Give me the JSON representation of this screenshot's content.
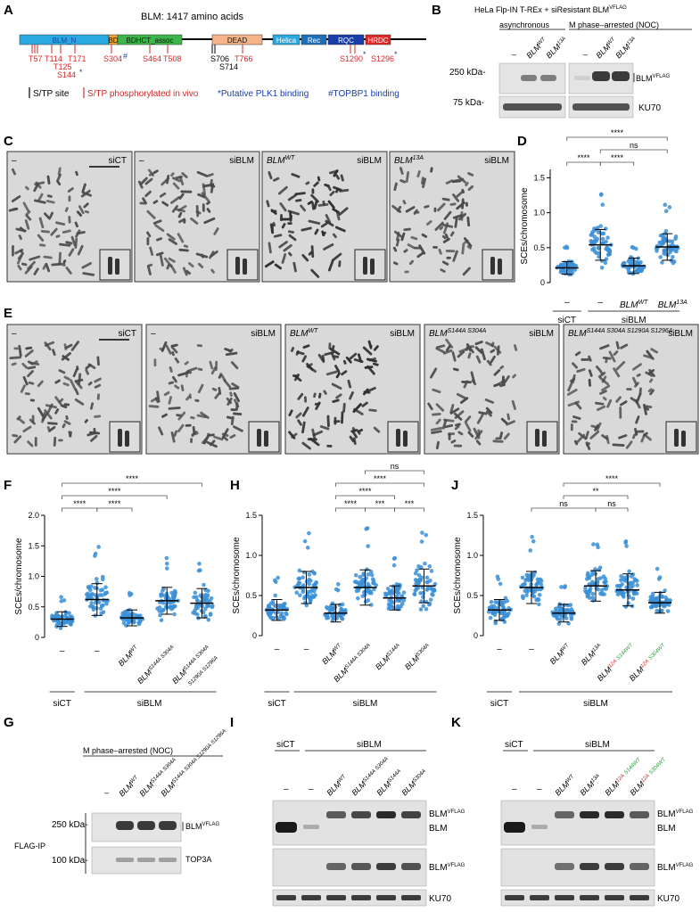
{
  "panels": {
    "A": "A",
    "B": "B",
    "C": "C",
    "D": "D",
    "E": "E",
    "F": "F",
    "G": "G",
    "H": "H",
    "I": "I",
    "J": "J",
    "K": "K"
  },
  "panelA": {
    "title": "BLM: 1417 amino acids",
    "domains": [
      {
        "label": "BLM_N",
        "color": "#29a9df",
        "text_color": "#1a3ea8"
      },
      {
        "label": "BD",
        "color": "#f2a53a",
        "text_color": "#111"
      },
      {
        "label": "BDHCT_assoc",
        "color": "#3cb54a",
        "text_color": "#111"
      },
      {
        "label": "DEAD",
        "color": "#f5b48a",
        "text_color": "#111"
      },
      {
        "label": "Helica",
        "color": "#29a9df",
        "text_color": "#fff"
      },
      {
        "label": "Rec",
        "color": "#1f6fb8",
        "text_color": "#fff"
      },
      {
        "label": "RQC",
        "color": "#1a3ea8",
        "text_color": "#fff"
      },
      {
        "label": "HRDC",
        "color": "#e02828",
        "text_color": "#fff"
      }
    ],
    "sites_row1": [
      "T57",
      "T114",
      "T171",
      "S304",
      "S464",
      "T508",
      "S706",
      "T766",
      "S1290",
      "S1296"
    ],
    "sites_row2": [
      "T125",
      "S714"
    ],
    "sites_row3": [
      "S144"
    ],
    "star": "*",
    "hash": "#",
    "legend": {
      "st": "S/TP site",
      "phospho": "S/TP phosphorylated in vivo",
      "plk1": "*Putative PLK1 binding",
      "topbp1": "#TOPBP1 binding"
    },
    "colors": {
      "red": "#d22a2a",
      "blue": "#1a3ea8"
    }
  },
  "panelB": {
    "header": "HeLa Flp-IN T-REx + siResistant BLM",
    "header_sup": "VFLAG",
    "async": "asynchronous",
    "mphase": "M phase–arrested (NOC)",
    "lanes": [
      "–",
      "BLM",
      "BLM"
    ],
    "lane_sups": [
      "",
      "WT",
      "13A"
    ],
    "kda_250": "250 kDa-",
    "kda_75": "75 kDa-",
    "band_blm": "BLM",
    "band_blm_sup": "VFLAG",
    "band_ku": "KU70"
  },
  "panelC": {
    "images": [
      {
        "left": "–",
        "right": "siCT"
      },
      {
        "left": "–",
        "right": "siBLM"
      },
      {
        "left": "BLM",
        "left_sup": "WT",
        "right": "siBLM"
      },
      {
        "left": "BLM",
        "left_sup": "13A",
        "right": "siBLM"
      }
    ]
  },
  "panelE": {
    "images": [
      {
        "left": "–",
        "right": "siCT"
      },
      {
        "left": "–",
        "right": "siBLM"
      },
      {
        "left": "BLM",
        "left_sup": "WT",
        "right": "siBLM"
      },
      {
        "left": "BLM",
        "left_sup": "S144A S304A",
        "right": "siBLM"
      },
      {
        "left": "BLM",
        "left_sup": "S144A S304A S1290A S1296A",
        "right": "siBLM"
      }
    ]
  },
  "ylabel": "SCEs/chromosome",
  "chart_data": [
    {
      "panel": "D",
      "type": "scatter",
      "ylabel": "SCEs/chromosome",
      "yticks": [
        0,
        0.5,
        1.0,
        1.5
      ],
      "categories": [
        "–",
        "–",
        "BLM WT",
        "BLM 13A"
      ],
      "x_groups": {
        "siCT": [
          0
        ],
        "siBLM": [
          1,
          2,
          3
        ]
      },
      "means": [
        0.21,
        0.54,
        0.24,
        0.51
      ],
      "sds": [
        0.09,
        0.22,
        0.11,
        0.19
      ],
      "sig": [
        {
          "a": 0,
          "b": 1,
          "label": "****"
        },
        {
          "a": 1,
          "b": 2,
          "label": "****"
        },
        {
          "a": 1,
          "b": 3,
          "label": "ns"
        },
        {
          "a": 0,
          "b": 3,
          "label": "****"
        }
      ]
    },
    {
      "panel": "F",
      "type": "scatter",
      "ylabel": "SCEs/chromosome",
      "yticks": [
        0,
        0.5,
        1.0,
        1.5,
        2.0
      ],
      "categories": [
        "–",
        "–",
        "BLM WT",
        "BLM S144A S304A",
        "BLM S144A S304A S1290A S1296A"
      ],
      "x_groups": {
        "siCT": [
          0
        ],
        "siBLM": [
          1,
          2,
          3,
          4
        ]
      },
      "means": [
        0.3,
        0.62,
        0.32,
        0.6,
        0.56
      ],
      "sds": [
        0.12,
        0.26,
        0.13,
        0.22,
        0.24
      ],
      "sig": [
        {
          "a": 0,
          "b": 1,
          "label": "****"
        },
        {
          "a": 1,
          "b": 2,
          "label": "****"
        },
        {
          "a": 0,
          "b": 3,
          "label": "****"
        },
        {
          "a": 0,
          "b": 4,
          "label": "****"
        }
      ]
    },
    {
      "panel": "H",
      "type": "scatter",
      "ylabel": "SCEs/chromosome",
      "yticks": [
        0,
        0.5,
        1.0,
        1.5
      ],
      "categories": [
        "–",
        "–",
        "BLM WT",
        "BLM S144A S304A",
        "BLM S144A",
        "BLM S304A"
      ],
      "x_groups": {
        "siCT": [
          0
        ],
        "siBLM": [
          1,
          2,
          3,
          4,
          5
        ]
      },
      "means": [
        0.32,
        0.6,
        0.28,
        0.6,
        0.47,
        0.62
      ],
      "sds": [
        0.13,
        0.2,
        0.11,
        0.22,
        0.15,
        0.21
      ],
      "sig": [
        {
          "a": 2,
          "b": 3,
          "label": "****"
        },
        {
          "a": 3,
          "b": 4,
          "label": "***"
        },
        {
          "a": 4,
          "b": 5,
          "label": "***"
        },
        {
          "a": 2,
          "b": 4,
          "label": "****"
        },
        {
          "a": 2,
          "b": 5,
          "label": "****"
        },
        {
          "a": 3,
          "b": 5,
          "label": "ns"
        }
      ]
    },
    {
      "panel": "J",
      "type": "scatter",
      "ylabel": "SCEs/chromosome",
      "yticks": [
        0,
        0.5,
        1.0,
        1.5
      ],
      "categories": [
        "–",
        "–",
        "BLM WT",
        "BLM 13A",
        "BLM 12A S144WT",
        "BLM 12A S304WT"
      ],
      "x_groups": {
        "siCT": [
          0
        ],
        "siBLM": [
          1,
          2,
          3,
          4,
          5
        ]
      },
      "means": [
        0.32,
        0.6,
        0.28,
        0.62,
        0.57,
        0.41
      ],
      "sds": [
        0.13,
        0.2,
        0.11,
        0.19,
        0.2,
        0.13
      ],
      "sig": [
        {
          "a": 1,
          "b": 3,
          "label": "ns"
        },
        {
          "a": 3,
          "b": 4,
          "label": "ns"
        },
        {
          "a": 2,
          "b": 4,
          "label": "**"
        },
        {
          "a": 2,
          "b": 5,
          "label": "****"
        }
      ]
    }
  ],
  "xlabels": {
    "siCT": "siCT",
    "siBLM": "siBLM",
    "dash": "–",
    "BLM": "BLM",
    "WT": "WT",
    "13A": "13A",
    "S144A_S304A": "S144A S304A",
    "S144A": "S144A",
    "S304A": "S304A",
    "quad1": "S144A S304A",
    "quad2": "S1290A S1296A",
    "12A": "12A",
    "S144WT": "S144WT",
    "S304WT": "S304WT",
    "green": "#2a9a3a",
    "red": "#d22a2a"
  },
  "panelG": {
    "header": "M phase–arrested (NOC)",
    "lanes": [
      "–",
      "BLM",
      "BLM",
      "BLM"
    ],
    "lane_sups": [
      "",
      "WT",
      "S144A S304A",
      "S144A S304A S1290A S1296A"
    ],
    "kda_250": "250 kDa-",
    "kda_100": "100 kDa-",
    "band_blm": "BLM",
    "band_blm_sup": "VFLAG",
    "band_top3a": "TOP3A",
    "side": "FLAG-IP"
  },
  "panelI": {
    "siCT": "siCT",
    "siBLM": "siBLM",
    "lanes": [
      "–",
      "–",
      "BLM",
      "BLM",
      "BLM",
      "BLM"
    ],
    "lane_sups": [
      "",
      "",
      "WT",
      "S144A S304A",
      "S144A",
      "S304A"
    ],
    "band_blm_flag": "BLM",
    "sup": "VFLAG",
    "band_blm": "BLM",
    "band_ku": "KU70"
  },
  "panelK": {
    "siCT": "siCT",
    "siBLM": "siBLM",
    "lanes": [
      "–",
      "–",
      "BLM",
      "BLM",
      "BLM",
      "BLM"
    ],
    "lane_sups": [
      "",
      "",
      "WT",
      "13A",
      "12A S144WT",
      "12A S304WT"
    ],
    "band_blm_flag": "BLM",
    "sup": "VFLAG",
    "band_blm": "BLM",
    "band_ku": "KU70"
  }
}
